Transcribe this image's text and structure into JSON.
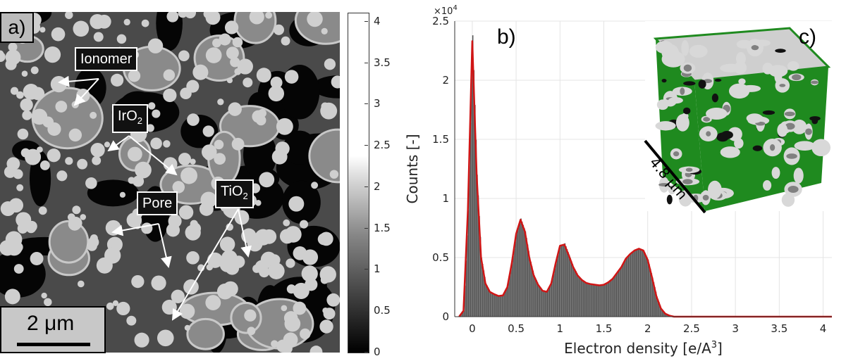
{
  "panel_a": {
    "label": "a)",
    "annotations": [
      {
        "key": "ionomer",
        "text": "Ionomer",
        "sub": ""
      },
      {
        "key": "iro2",
        "text": "IrO",
        "sub": "2"
      },
      {
        "key": "pore",
        "text": "Pore",
        "sub": ""
      },
      {
        "key": "tio2",
        "text": "TiO",
        "sub": "2"
      }
    ],
    "scale_bar": "2 μm",
    "colorbar": {
      "ticks": [
        "0",
        "0.5",
        "1",
        "1.5",
        "2",
        "2.5",
        "3",
        "3.5",
        "4"
      ],
      "range": [
        0,
        4.1
      ]
    }
  },
  "panel_c": {
    "label": "c)",
    "scale_text": "4.8 μm",
    "colors": {
      "ionomer": "#1f8a1f",
      "iro2": "#d8d8d8",
      "tio2": "#808080"
    }
  },
  "chart_data": {
    "type": "bar",
    "panel_label": "b)",
    "xlabel": "Electron density [e/A",
    "xlabel_sup": "3",
    "xlabel_end": "]",
    "ylabel": "Counts [-]",
    "y_multiplier": "×10",
    "y_multiplier_exp": "4",
    "xlim": [
      -0.2,
      4.1
    ],
    "ylim": [
      0,
      2.5
    ],
    "xticks": [
      "0",
      "0.5",
      "1",
      "1.5",
      "2",
      "2.5",
      "3",
      "3.5",
      "4"
    ],
    "yticks": [
      "0",
      "0.5",
      "1",
      "1.5",
      "2",
      "2.5"
    ],
    "grid": true,
    "bar_color": "#555555",
    "fit_color": "#d01515",
    "x": [
      -0.15,
      -0.1,
      -0.05,
      0,
      0.05,
      0.1,
      0.15,
      0.2,
      0.25,
      0.3,
      0.35,
      0.4,
      0.45,
      0.5,
      0.55,
      0.6,
      0.65,
      0.7,
      0.75,
      0.8,
      0.85,
      0.9,
      0.95,
      1.0,
      1.05,
      1.1,
      1.15,
      1.2,
      1.25,
      1.3,
      1.35,
      1.4,
      1.45,
      1.5,
      1.55,
      1.6,
      1.65,
      1.7,
      1.75,
      1.8,
      1.85,
      1.9,
      1.95,
      2.0,
      2.05,
      2.1,
      2.15,
      2.2,
      2.25,
      2.3,
      2.5,
      3.0,
      3.5,
      4.0,
      4.1
    ],
    "bars": [
      0,
      0.05,
      0.9,
      2.38,
      1.2,
      0.5,
      0.28,
      0.21,
      0.19,
      0.175,
      0.18,
      0.25,
      0.45,
      0.7,
      0.83,
      0.72,
      0.5,
      0.35,
      0.27,
      0.22,
      0.21,
      0.28,
      0.45,
      0.6,
      0.62,
      0.52,
      0.42,
      0.35,
      0.31,
      0.285,
      0.275,
      0.27,
      0.265,
      0.27,
      0.29,
      0.32,
      0.37,
      0.42,
      0.49,
      0.53,
      0.56,
      0.575,
      0.56,
      0.48,
      0.33,
      0.17,
      0.07,
      0.025,
      0.008,
      0,
      0,
      0,
      0,
      0,
      0
    ],
    "fit": [
      0,
      0.05,
      0.9,
      2.33,
      1.2,
      0.5,
      0.28,
      0.21,
      0.19,
      0.175,
      0.18,
      0.25,
      0.45,
      0.7,
      0.82,
      0.72,
      0.5,
      0.35,
      0.27,
      0.22,
      0.21,
      0.28,
      0.45,
      0.6,
      0.61,
      0.52,
      0.42,
      0.35,
      0.31,
      0.285,
      0.275,
      0.27,
      0.265,
      0.27,
      0.29,
      0.32,
      0.37,
      0.42,
      0.49,
      0.53,
      0.56,
      0.575,
      0.56,
      0.48,
      0.33,
      0.17,
      0.07,
      0.025,
      0.008,
      0,
      0,
      0,
      0,
      0,
      0
    ]
  }
}
